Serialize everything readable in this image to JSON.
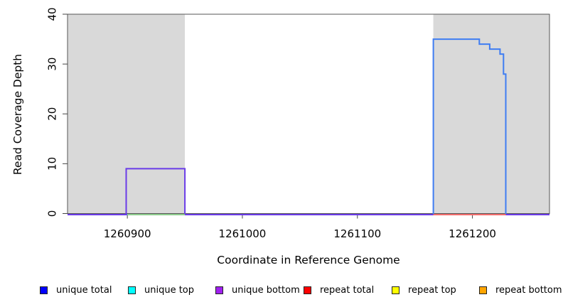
{
  "chart_data": {
    "type": "line",
    "title": "",
    "xlabel": "Coordinate in Reference Genome",
    "ylabel": "Read Coverage Depth",
    "xlim": [
      1260848,
      1261267
    ],
    "ylim": [
      0,
      40
    ],
    "x_ticks": [
      1260900,
      1261000,
      1261100,
      1261200
    ],
    "y_ticks": [
      0,
      10,
      20,
      30,
      40
    ],
    "grid": false,
    "legend_position": "bottom",
    "shaded_regions": [
      {
        "name": "shaded-region-left",
        "x0": 1260848,
        "x1": 1260950
      },
      {
        "name": "shaded-region-right",
        "x0": 1261166,
        "x1": 1261267
      }
    ],
    "series": [
      {
        "name": "unique total",
        "line_color": "#3f7df2",
        "points": [
          [
            1260848,
            0
          ],
          [
            1261166,
            0
          ],
          [
            1261166,
            35
          ],
          [
            1261206,
            35
          ],
          [
            1261206,
            34
          ],
          [
            1261215,
            34
          ],
          [
            1261215,
            33
          ],
          [
            1261224,
            33
          ],
          [
            1261224,
            32
          ],
          [
            1261227,
            32
          ],
          [
            1261227,
            28
          ],
          [
            1261229,
            28
          ],
          [
            1261229,
            0
          ],
          [
            1261267,
            0
          ]
        ]
      },
      {
        "name": "unique bottom",
        "line_color": "#6a3ce8",
        "points": [
          [
            1260848,
            0
          ],
          [
            1260899,
            0
          ],
          [
            1260899,
            9
          ],
          [
            1260950,
            9
          ],
          [
            1260950,
            0
          ],
          [
            1261267,
            0
          ]
        ]
      },
      {
        "name": "green baseline segment",
        "line_color": "#8fce8f",
        "points": [
          [
            1260900,
            0
          ],
          [
            1260950,
            0
          ]
        ]
      },
      {
        "name": "repeat total",
        "line_color": "#f26d6d",
        "points": [
          [
            1261166,
            0
          ],
          [
            1261229,
            0
          ]
        ]
      }
    ],
    "legend": [
      {
        "label": "unique total",
        "color": "#0000ff"
      },
      {
        "label": "unique top",
        "color": "#00ffff"
      },
      {
        "label": "unique bottom",
        "color": "#a020f0"
      },
      {
        "label": "repeat total",
        "color": "#ff0000"
      },
      {
        "label": "repeat top",
        "color": "#ffff00"
      },
      {
        "label": "repeat bottom",
        "color": "#ffa500"
      }
    ],
    "colors": {
      "background": "#ffffff",
      "shaded_region": "#d9d9d9",
      "box_border": "#565656",
      "tick": "#444444",
      "text": "#000000"
    }
  }
}
